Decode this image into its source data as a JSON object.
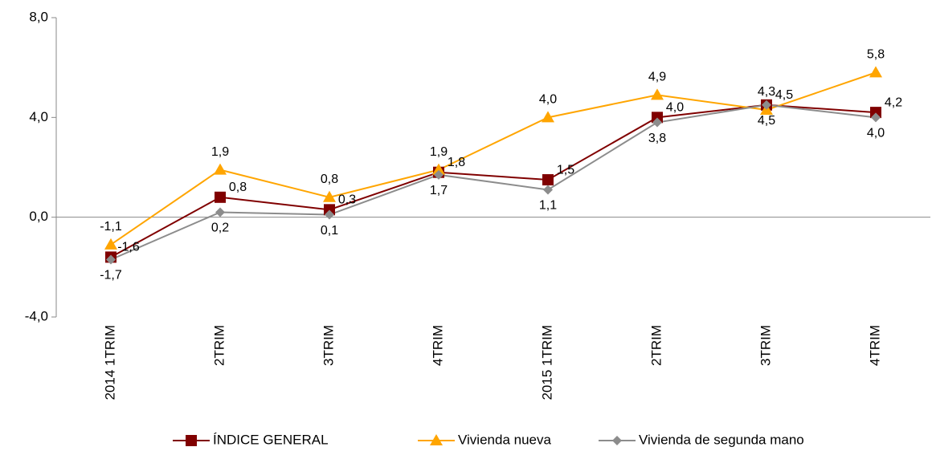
{
  "chart_data": {
    "type": "line",
    "categories": [
      "2014 1TRIM",
      "2TRIM",
      "3TRIM",
      "4TRIM",
      "2015 1TRIM",
      "2TRIM",
      "3TRIM",
      "4TRIM"
    ],
    "series": [
      {
        "name": "ÍNDICE GENERAL",
        "color": "#800000",
        "marker": "square",
        "values": [
          -1.6,
          0.8,
          0.3,
          1.8,
          1.5,
          4.0,
          4.5,
          4.2
        ],
        "value_labels": [
          "-1,6",
          "0,8",
          "0,3",
          "1,8",
          "1,5",
          "4,0",
          "4,5",
          "4,2"
        ]
      },
      {
        "name": "Vivienda nueva",
        "color": "#ffa500",
        "marker": "triangle",
        "values": [
          -1.1,
          1.9,
          0.8,
          1.9,
          4.0,
          4.9,
          4.3,
          5.8
        ],
        "value_labels": [
          "-1,1",
          "1,9",
          "0,8",
          "1,9",
          "4,0",
          "4,9",
          "4,3",
          "5,8"
        ]
      },
      {
        "name": "Vivienda de segunda mano",
        "color": "#8c8c8c",
        "marker": "diamond",
        "values": [
          -1.7,
          0.2,
          0.1,
          1.7,
          1.1,
          3.8,
          4.5,
          4.0
        ],
        "value_labels": [
          "-1,7",
          "0,2",
          "0,1",
          "1,7",
          "1,1",
          "3,8",
          "4,5",
          "4,0"
        ]
      }
    ],
    "ylim": [
      -4.0,
      8.0
    ],
    "yticks": [
      {
        "value": -4.0,
        "label": "-4,0"
      },
      {
        "value": 0.0,
        "label": "0,0"
      },
      {
        "value": 4.0,
        "label": "4,0"
      },
      {
        "value": 8.0,
        "label": "8,0"
      }
    ],
    "grid": false,
    "legend": "bottom"
  }
}
